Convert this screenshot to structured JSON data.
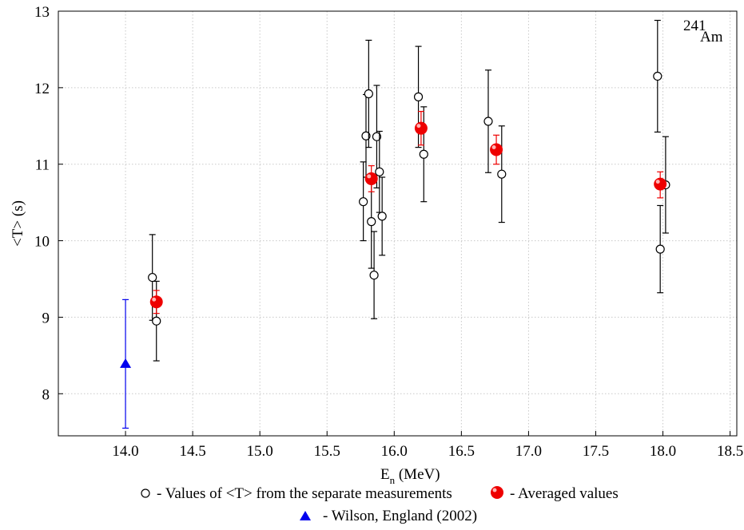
{
  "chart_data": {
    "type": "scatter",
    "title": "",
    "annotation": {
      "superscript": "241",
      "text": "Am"
    },
    "xlabel": {
      "main": "E",
      "sub": "n",
      "unit": " (MeV)"
    },
    "ylabel": "<T> (s)",
    "xlim": [
      13.5,
      18.55
    ],
    "ylim": [
      7.45,
      13.0
    ],
    "xticks": [
      "14.0",
      "14.5",
      "15.0",
      "15.5",
      "16.0",
      "16.5",
      "17.0",
      "17.5",
      "18.0",
      "18.5"
    ],
    "yticks": [
      "8",
      "9",
      "10",
      "11",
      "12",
      "13"
    ],
    "grid": true,
    "series": [
      {
        "name": "- Values of <T> from the separate measurements",
        "marker": "open-circle",
        "color": "#000000",
        "points": [
          {
            "x": 14.2,
            "y": 9.52,
            "lo": 8.96,
            "hi": 10.08
          },
          {
            "x": 14.23,
            "y": 8.95,
            "lo": 8.43,
            "hi": 9.47
          },
          {
            "x": 15.77,
            "y": 10.51,
            "lo": 10.0,
            "hi": 11.03
          },
          {
            "x": 15.79,
            "y": 11.37,
            "lo": 10.83,
            "hi": 11.91
          },
          {
            "x": 15.81,
            "y": 11.92,
            "lo": 11.22,
            "hi": 12.62
          },
          {
            "x": 15.83,
            "y": 10.25,
            "lo": 9.64,
            "hi": 10.86
          },
          {
            "x": 15.85,
            "y": 9.55,
            "lo": 8.98,
            "hi": 10.12
          },
          {
            "x": 15.87,
            "y": 11.36,
            "lo": 10.69,
            "hi": 12.03
          },
          {
            "x": 15.89,
            "y": 10.9,
            "lo": 10.37,
            "hi": 11.43
          },
          {
            "x": 15.91,
            "y": 10.32,
            "lo": 9.81,
            "hi": 10.83
          },
          {
            "x": 16.18,
            "y": 11.88,
            "lo": 11.22,
            "hi": 12.54
          },
          {
            "x": 16.22,
            "y": 11.13,
            "lo": 10.51,
            "hi": 11.75
          },
          {
            "x": 16.7,
            "y": 11.56,
            "lo": 10.89,
            "hi": 12.23
          },
          {
            "x": 16.8,
            "y": 10.87,
            "lo": 10.24,
            "hi": 11.5
          },
          {
            "x": 17.96,
            "y": 12.15,
            "lo": 11.42,
            "hi": 12.88
          },
          {
            "x": 17.98,
            "y": 9.89,
            "lo": 9.32,
            "hi": 10.46
          },
          {
            "x": 18.02,
            "y": 10.73,
            "lo": 10.1,
            "hi": 11.36
          }
        ]
      },
      {
        "name": "- Averaged values",
        "marker": "filled-circle",
        "color": "#ee0000",
        "points": [
          {
            "x": 14.23,
            "y": 9.2,
            "lo": 9.05,
            "hi": 9.35
          },
          {
            "x": 15.83,
            "y": 10.81,
            "lo": 10.64,
            "hi": 10.98
          },
          {
            "x": 16.2,
            "y": 11.47,
            "lo": 11.25,
            "hi": 11.69
          },
          {
            "x": 16.76,
            "y": 11.19,
            "lo": 11.0,
            "hi": 11.38
          },
          {
            "x": 17.98,
            "y": 10.74,
            "lo": 10.56,
            "hi": 10.9
          }
        ]
      },
      {
        "name": "- Wilson, England (2002)",
        "marker": "filled-triangle",
        "color": "#0000ee",
        "points": [
          {
            "x": 14.0,
            "y": 8.39,
            "lo": 7.55,
            "hi": 9.23
          }
        ]
      }
    ]
  }
}
